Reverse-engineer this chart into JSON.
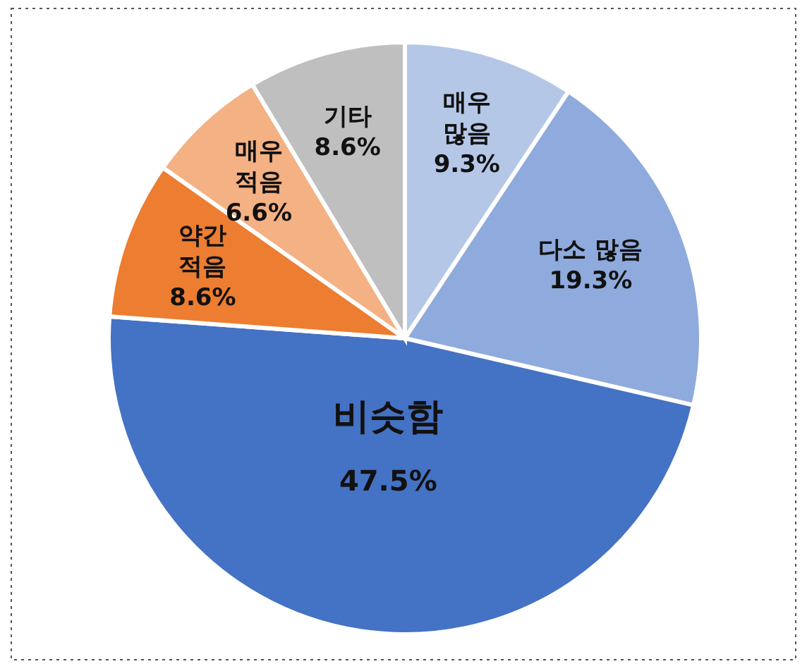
{
  "chart_data": {
    "type": "pie",
    "categories": [
      "매우 많음",
      "다소 많음",
      "비슷함",
      "약간 적음",
      "매우 적음",
      "기타"
    ],
    "values": [
      9.3,
      19.3,
      47.5,
      8.6,
      6.6,
      8.6
    ],
    "colors": [
      "#b4c7e7",
      "#8faadc",
      "#4472c4",
      "#ed7d31",
      "#f4b183",
      "#bfbfbf"
    ],
    "value_labels": [
      "9.3%",
      "19.3%",
      "47.5%",
      "8.6%",
      "6.6%",
      "8.6%"
    ]
  }
}
